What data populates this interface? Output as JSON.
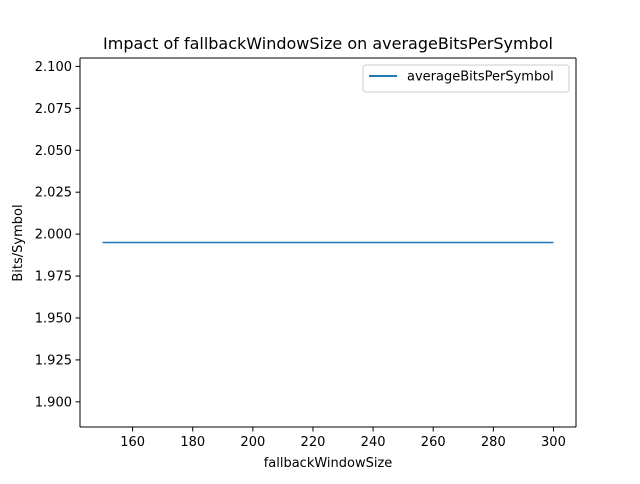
{
  "chart_data": {
    "type": "line",
    "title": "Impact of fallbackWindowSize on averageBitsPerSymbol",
    "xlabel": "fallbackWindowSize",
    "ylabel": "Bits/Symbol",
    "xlim": [
      142.5,
      307.5
    ],
    "ylim": [
      1.885,
      2.105
    ],
    "xticks": [
      160,
      180,
      200,
      220,
      240,
      260,
      280,
      300
    ],
    "xtick_labels": [
      "160",
      "180",
      "200",
      "220",
      "240",
      "260",
      "280",
      "300"
    ],
    "yticks": [
      1.9,
      1.925,
      1.95,
      1.975,
      2.0,
      2.025,
      2.05,
      2.075,
      2.1
    ],
    "ytick_labels": [
      "1.900",
      "1.925",
      "1.950",
      "1.975",
      "2.000",
      "2.025",
      "2.050",
      "2.075",
      "2.100"
    ],
    "grid": false,
    "legend_position": "upper right",
    "series": [
      {
        "name": "averageBitsPerSymbol",
        "color": "#1f77b4",
        "x": [
          150,
          300
        ],
        "y": [
          1.995,
          1.995
        ]
      }
    ]
  }
}
